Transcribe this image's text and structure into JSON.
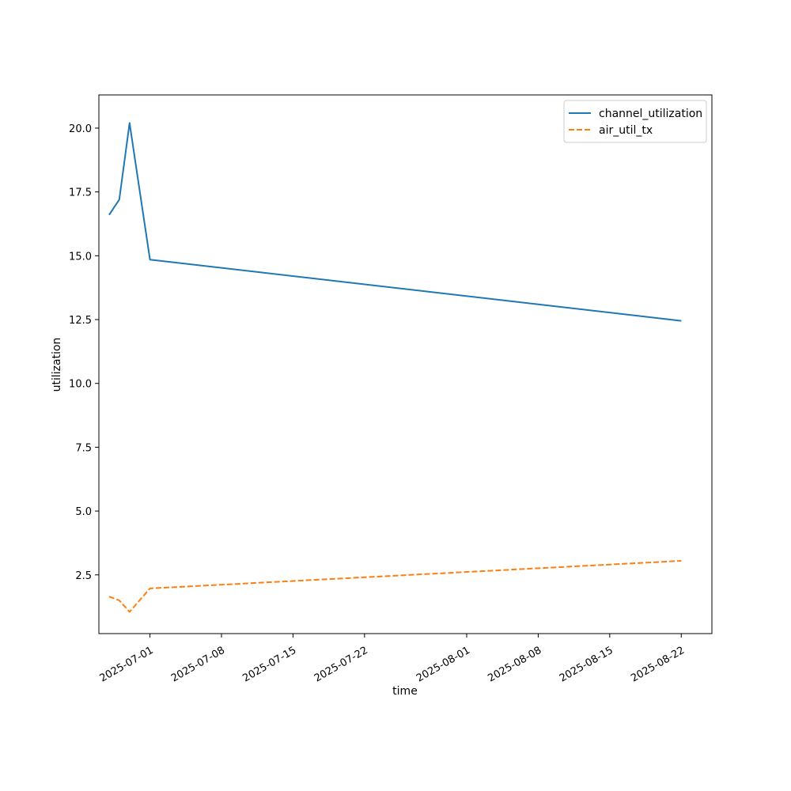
{
  "chart_data": {
    "type": "line",
    "title": "",
    "xlabel": "time",
    "ylabel": "utilization",
    "x": [
      "2025-06-27",
      "2025-06-28",
      "2025-06-29",
      "2025-07-01",
      "2025-08-22"
    ],
    "series": [
      {
        "name": "channel_utilization",
        "values": [
          16.6,
          17.2,
          20.2,
          14.85,
          12.45
        ],
        "color": "#1f77b4",
        "style": "solid"
      },
      {
        "name": "air_util_tx",
        "values": [
          1.65,
          1.5,
          1.05,
          1.97,
          3.05
        ],
        "color": "#ff7f0e",
        "style": "dashed"
      }
    ],
    "xlim": [
      "2025-06-26",
      "2025-08-25"
    ],
    "ylim": [
      0.2,
      21.3
    ],
    "x_ticks": [
      "2025-07-01",
      "2025-07-08",
      "2025-07-15",
      "2025-07-22",
      "2025-08-01",
      "2025-08-08",
      "2025-08-15",
      "2025-08-22"
    ],
    "y_ticks": [
      "2.5",
      "5.0",
      "7.5",
      "10.0",
      "12.5",
      "15.0",
      "17.5",
      "20.0"
    ],
    "grid": false,
    "legend_position": "top-right"
  }
}
